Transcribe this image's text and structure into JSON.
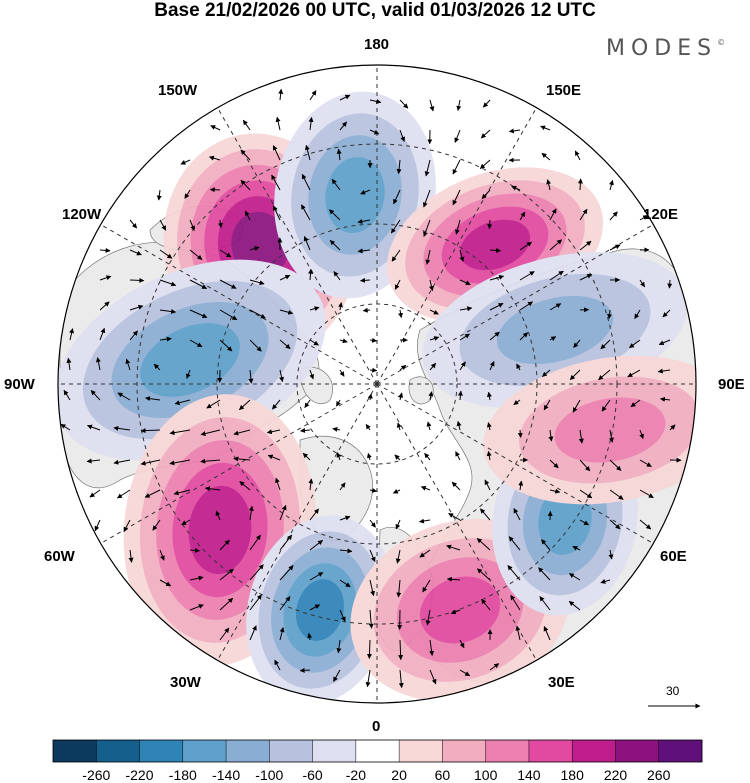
{
  "title": "Base 21/02/2026 00 UTC, valid 01/03/2026 12 UTC",
  "brand": {
    "name": "MODES",
    "mark": "©"
  },
  "map": {
    "projection": "north-polar-stereographic",
    "longitude_labels": {
      "top": "180",
      "bottom": "0",
      "left": "90W",
      "right": "90E",
      "upper_left_1": "150W",
      "upper_left_2": "120W",
      "upper_right_1": "150E",
      "upper_right_2": "120E",
      "lower_left_1": "60W",
      "lower_left_2": "30W",
      "lower_right_1": "60E",
      "lower_right_2": "30E"
    },
    "anomaly_centers": [
      {
        "id": "alaska-high",
        "sign": "positive",
        "level": 220
      },
      {
        "id": "bering-low",
        "sign": "negative",
        "level": -140
      },
      {
        "id": "east-siberia-high",
        "sign": "positive",
        "level": 180
      },
      {
        "id": "central-siberia-low",
        "sign": "negative",
        "level": -100
      },
      {
        "id": "canada-low",
        "sign": "negative",
        "level": -140
      },
      {
        "id": "west-atlantic-high",
        "sign": "positive",
        "level": 180
      },
      {
        "id": "north-atlantic-low",
        "sign": "negative",
        "level": -180
      },
      {
        "id": "europe-high",
        "sign": "positive",
        "level": 140
      },
      {
        "id": "urals-low",
        "sign": "negative",
        "level": -140
      },
      {
        "id": "west-siberia-high",
        "sign": "positive",
        "level": 100
      }
    ]
  },
  "vector_reference": {
    "label": "30"
  },
  "colorbar": {
    "labels": [
      "-260",
      "-220",
      "-180",
      "-140",
      "-100",
      "-60",
      "-20",
      "20",
      "60",
      "100",
      "140",
      "180",
      "220",
      "260"
    ],
    "colors": [
      "#0c3a5e",
      "#155f8c",
      "#2f83b7",
      "#5ea0cb",
      "#8aaed3",
      "#b7c2df",
      "#dedff0",
      "#ffffff",
      "#f8d7d7",
      "#f2aec0",
      "#ec7fb0",
      "#e14aa0",
      "#c01d8c",
      "#8c137f",
      "#5f107a"
    ]
  }
}
